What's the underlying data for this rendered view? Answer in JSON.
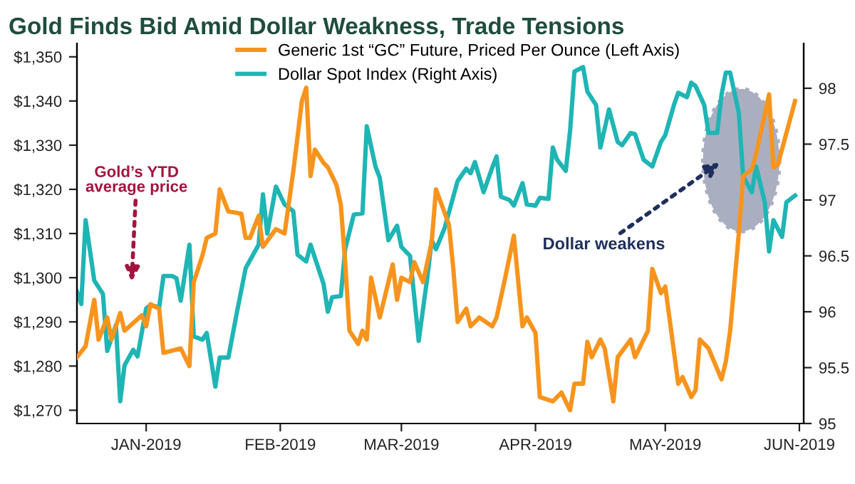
{
  "chart_data": {
    "type": "line",
    "title": "Gold Finds Bid Amid Dollar Weakness, Trade Tensions",
    "xlim": [
      "2018-12-16",
      "2019-06-02"
    ],
    "xticks": [
      {
        "value": "2019-01-01",
        "label": "JAN-2019"
      },
      {
        "value": "2019-02-01",
        "label": "FEB-2019"
      },
      {
        "value": "2019-03-01",
        "label": "MAR-2019"
      },
      {
        "value": "2019-04-01",
        "label": "APR-2019"
      },
      {
        "value": "2019-05-01",
        "label": "MAY-2019"
      },
      {
        "value": "2019-06-01",
        "label": "JUN-2019"
      }
    ],
    "ylim": [
      1267,
      1353
    ],
    "yticks": [
      {
        "value": 1270,
        "label": "$1,270"
      },
      {
        "value": 1280,
        "label": "$1,280"
      },
      {
        "value": 1290,
        "label": "$1,290"
      },
      {
        "value": 1300,
        "label": "$1,300"
      },
      {
        "value": 1310,
        "label": "$1,310"
      },
      {
        "value": 1320,
        "label": "$1,320"
      },
      {
        "value": 1330,
        "label": "$1,330"
      },
      {
        "value": 1340,
        "label": "$1,340"
      },
      {
        "value": 1350,
        "label": "$1,350"
      }
    ],
    "y2lim": [
      95,
      98.4
    ],
    "y2ticks": [
      95,
      95.5,
      96,
      96.5,
      97,
      97.5,
      98
    ],
    "grid": false,
    "legend": "top left",
    "line_style": "solid",
    "series": [
      {
        "name": "Generic 1st “GC” Future, Priced Per Ounce (Left Axis)",
        "color": "#f7941d",
        "x": [
          "2018-12-16",
          "2018-12-18",
          "2018-12-20",
          "2018-12-21",
          "2018-12-23",
          "2018-12-24",
          "2018-12-26",
          "2018-12-27",
          "2018-12-31",
          "2019-01-01",
          "2019-01-02",
          "2019-01-04",
          "2019-01-05",
          "2019-01-09",
          "2019-01-11",
          "2019-01-12",
          "2019-01-14",
          "2019-01-15",
          "2019-01-17",
          "2019-01-18",
          "2019-01-20",
          "2019-01-23",
          "2019-01-24",
          "2019-01-25",
          "2019-01-27",
          "2019-01-28",
          "2019-01-31",
          "2019-02-02",
          "2019-02-04",
          "2019-02-06",
          "2019-02-07",
          "2019-02-08",
          "2019-02-09",
          "2019-02-11",
          "2019-02-12",
          "2019-02-14",
          "2019-02-15",
          "2019-02-16",
          "2019-02-17",
          "2019-02-19",
          "2019-02-20",
          "2019-02-21",
          "2019-02-22",
          "2019-02-24",
          "2019-02-27",
          "2019-02-28",
          "2019-03-01",
          "2019-03-03",
          "2019-03-04",
          "2019-03-06",
          "2019-03-08",
          "2019-03-09",
          "2019-03-12",
          "2019-03-13",
          "2019-03-14",
          "2019-03-16",
          "2019-03-17",
          "2019-03-19",
          "2019-03-22",
          "2019-03-23",
          "2019-03-25",
          "2019-03-27",
          "2019-03-29",
          "2019-03-30",
          "2019-04-01",
          "2019-04-02",
          "2019-04-05",
          "2019-04-07",
          "2019-04-09",
          "2019-04-10",
          "2019-04-12",
          "2019-04-13",
          "2019-04-14",
          "2019-04-16",
          "2019-04-17",
          "2019-04-19",
          "2019-04-20",
          "2019-04-23",
          "2019-04-24",
          "2019-04-26",
          "2019-04-27",
          "2019-04-28",
          "2019-04-30",
          "2019-05-01",
          "2019-05-04",
          "2019-05-05",
          "2019-05-07",
          "2019-05-08",
          "2019-05-09",
          "2019-05-11",
          "2019-05-14",
          "2019-05-15",
          "2019-05-16",
          "2019-05-18",
          "2019-05-19",
          "2019-05-21",
          "2019-05-22",
          "2019-05-24",
          "2019-05-25",
          "2019-05-26",
          "2019-05-27",
          "2019-05-31"
        ],
        "values": [
          1282,
          1284.5,
          1295,
          1286,
          1291,
          1286,
          1292,
          1288,
          1291.5,
          1289,
          1294,
          1293,
          1283,
          1284,
          1280,
          1299,
          1305,
          1309,
          1310,
          1320,
          1315,
          1314.5,
          1309,
          1309,
          1314,
          1307,
          1311,
          1310,
          1324,
          1340,
          1343,
          1323,
          1329,
          1326,
          1325,
          1321,
          1316.5,
          1303.5,
          1288,
          1285,
          1288,
          1286,
          1300,
          1291,
          1303,
          1295,
          1300,
          1299,
          1303.5,
          1299,
          1308,
          1320,
          1312,
          1302,
          1290,
          1293,
          1289,
          1291,
          1289,
          1291,
          1300,
          1309.5,
          1289,
          1291,
          1287.5,
          1273,
          1272,
          1274,
          1270,
          1276,
          1276,
          1285.5,
          1282,
          1286,
          1284,
          1272,
          1282,
          1286,
          1282,
          1286,
          1288,
          1302,
          1296.5,
          1298,
          1276,
          1277.5,
          1273,
          1274.5,
          1286,
          1284,
          1277,
          1281,
          1288,
          1310,
          1323,
          1324.5,
          1328,
          1337,
          1341.5,
          1325,
          1325.5,
          1340
        ]
      },
      {
        "name": "Dollar Spot Index (Right Axis)",
        "color": "#1fb5b5",
        "axis": "y2",
        "x": [
          "2018-12-16",
          "2018-12-17",
          "2018-12-18",
          "2018-12-20",
          "2018-12-22",
          "2018-12-23",
          "2018-12-25",
          "2018-12-26",
          "2018-12-27",
          "2018-12-29",
          "2018-12-30",
          "2019-01-01",
          "2019-01-02",
          "2019-01-04",
          "2019-01-05",
          "2019-01-07",
          "2019-01-08",
          "2019-01-09",
          "2019-01-11",
          "2019-01-12",
          "2019-01-14",
          "2019-01-15",
          "2019-01-17",
          "2019-01-18",
          "2019-01-20",
          "2019-01-22",
          "2019-01-24",
          "2019-01-27",
          "2019-01-28",
          "2019-01-29",
          "2019-01-31",
          "2019-02-02",
          "2019-02-04",
          "2019-02-05",
          "2019-02-07",
          "2019-02-08",
          "2019-02-11",
          "2019-02-12",
          "2019-02-13",
          "2019-02-15",
          "2019-02-16",
          "2019-02-18",
          "2019-02-20",
          "2019-02-21",
          "2019-02-23",
          "2019-02-24",
          "2019-02-26",
          "2019-02-28",
          "2019-03-01",
          "2019-03-03",
          "2019-03-05",
          "2019-03-07",
          "2019-03-08",
          "2019-03-09",
          "2019-03-11",
          "2019-03-14",
          "2019-03-16",
          "2019-03-17",
          "2019-03-18",
          "2019-03-20",
          "2019-03-22",
          "2019-03-23",
          "2019-03-24",
          "2019-03-26",
          "2019-03-27",
          "2019-03-29",
          "2019-03-30",
          "2019-04-01",
          "2019-04-02",
          "2019-04-04",
          "2019-04-05",
          "2019-04-06",
          "2019-04-08",
          "2019-04-09",
          "2019-04-10",
          "2019-04-12",
          "2019-04-13",
          "2019-04-15",
          "2019-04-16",
          "2019-04-18",
          "2019-04-20",
          "2019-04-21",
          "2019-04-23",
          "2019-04-24",
          "2019-04-26",
          "2019-04-28",
          "2019-04-30",
          "2019-05-01",
          "2019-05-03",
          "2019-05-04",
          "2019-05-06",
          "2019-05-07",
          "2019-05-08",
          "2019-05-10",
          "2019-05-11",
          "2019-05-13",
          "2019-05-14",
          "2019-05-15",
          "2019-05-16",
          "2019-05-18",
          "2019-05-19",
          "2019-05-21",
          "2019-05-22",
          "2019-05-24",
          "2019-05-25",
          "2019-05-26",
          "2019-05-28",
          "2019-05-29",
          "2019-05-31"
        ],
        "values": [
          96.18,
          96.07,
          96.82,
          96.28,
          96.16,
          95.65,
          95.88,
          95.2,
          95.52,
          95.66,
          95.6,
          96.03,
          96.06,
          96.04,
          96.32,
          96.32,
          96.3,
          96.1,
          96.6,
          95.78,
          95.75,
          95.81,
          95.33,
          95.59,
          95.59,
          96.0,
          96.39,
          96.6,
          97.05,
          96.7,
          97.12,
          96.96,
          96.9,
          96.51,
          96.45,
          96.6,
          96.25,
          96.0,
          96.13,
          96.14,
          96.56,
          96.87,
          96.88,
          97.66,
          97.3,
          97.2,
          96.64,
          96.77,
          96.58,
          96.5,
          95.74,
          96.31,
          96.64,
          96.56,
          96.75,
          97.17,
          97.28,
          97.24,
          97.34,
          97.07,
          97.29,
          97.39,
          97.03,
          97.0,
          96.95,
          97.15,
          96.96,
          96.95,
          97.02,
          97.01,
          97.47,
          97.36,
          97.26,
          97.62,
          98.15,
          98.19,
          97.97,
          97.85,
          97.47,
          97.81,
          97.52,
          97.49,
          97.6,
          97.59,
          97.36,
          97.3,
          97.52,
          97.58,
          97.85,
          97.96,
          97.92,
          98.05,
          98.02,
          97.85,
          97.6,
          97.6,
          97.94,
          98.14,
          98.14,
          97.78,
          97.21,
          97.07,
          97.3,
          96.98,
          96.54,
          96.82,
          96.67,
          96.98,
          97.04
        ]
      }
    ],
    "annotations": [
      "Gold’s YTD\naverage price",
      "Dollar weakens"
    ]
  }
}
